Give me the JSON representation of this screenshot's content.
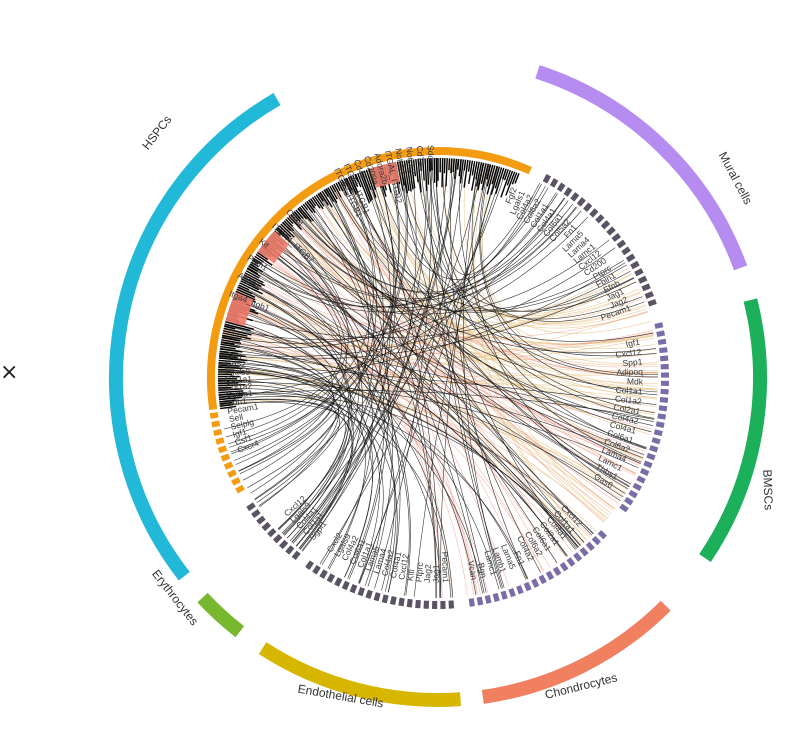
{
  "edge_mark": "×",
  "colors": {
    "hspc": "#22b8d8",
    "mural": "#b68cf0",
    "bmsc": "#1db05a",
    "chondro": "#f08060",
    "endo": "#d7b600",
    "erythro": "#78b82e",
    "inner_orange": "#f39c12",
    "inner_gray": "#5a5364",
    "inner_purple": "#7a6ca6",
    "link_black": "#111111",
    "link_pink": "#f07c6c",
    "link_tan": "#e8c58c"
  },
  "groups": [
    {
      "id": "hspc",
      "label": "HSPCs",
      "start": 232,
      "end": 330,
      "color_key": "hspc"
    },
    {
      "id": "mural",
      "label": "Mural cells",
      "start": 18,
      "end": 70,
      "color_key": "mural"
    },
    {
      "id": "bmsc",
      "label": "BMSCs",
      "start": 76,
      "end": 124,
      "color_key": "bmsc"
    },
    {
      "id": "chondro",
      "label": "Chondrocytes",
      "start": 135,
      "end": 172,
      "color_key": "chondro"
    },
    {
      "id": "endo",
      "label": "Endothelial cells",
      "start": 176,
      "end": 213,
      "color_key": "endo"
    },
    {
      "id": "erythro",
      "label": "Erythrocytes",
      "start": 218,
      "end": 227,
      "color_key": "erythro"
    }
  ],
  "gene_labels": {
    "hspc_top": [
      "ITGA2_ITGB1",
      "ITGA1_ITGB1",
      "Cd47",
      "Cd209a",
      "Adora2b",
      "ITGAL_ITGB2",
      "Notch1",
      "Notch2",
      "Cd74",
      "Sdc"
    ],
    "hspc_left": [
      "Itga4_Itgb1",
      "Adgrl1",
      "Pgm1",
      "Kit",
      "ITGA4_ITGB7",
      "Cd44"
    ],
    "hspc_lower": [
      "Cxcr4",
      "Csf1",
      "Igf1",
      "Selplg",
      "Sell",
      "Pecam1",
      "Cdh1",
      "Col2a1",
      "Col1a2",
      "Col1a1",
      "Lgals9",
      "Cd52",
      "Cd3"
    ],
    "mural": [
      "Fgf2",
      "Lgals1",
      "Col4a2",
      "Col6a2",
      "Col1a1",
      "Col4a1",
      "Col6a1",
      "Col5a2",
      "Fn1",
      "Lama5",
      "Lama4",
      "Lamc1",
      "Cxcl12",
      "Cd200",
      "Ptprc",
      "Fbln1",
      "Efnb",
      "Jag1",
      "Jag2",
      "Pecam1"
    ],
    "bmsc": [
      "Igf1",
      "Cxcl12",
      "Spp1",
      "Adipoq",
      "Mdk",
      "Col1a1",
      "Col1a2",
      "Col2a1",
      "Col4a2",
      "Col4a1",
      "Col6a1",
      "Col6a2",
      "Lama4",
      "Lamc1",
      "Thbs1",
      "Gas6"
    ],
    "chondro": [
      "Cxcl12",
      "Col1a1",
      "Col4a1",
      "Col2a1",
      "Col6a1",
      "Col6a2",
      "Col4a2",
      "Fn1",
      "Lama5",
      "Lamb1",
      "Lamc1",
      "Bgn",
      "Vcan"
    ],
    "endo": [
      "Pecam1",
      "Jag1",
      "Jag2",
      "Ptprc",
      "Kitl",
      "Cxcl12",
      "Col4a1",
      "Col4a2",
      "Lama4",
      "Lama5",
      "Col1a1",
      "Col6a1",
      "Col4a2",
      "Lgals9",
      "Cxcl2"
    ],
    "erythro": [
      "Sgpl1",
      "Col1a1",
      "Col4a1",
      "Lgals9",
      "Cxcl12"
    ]
  }
}
